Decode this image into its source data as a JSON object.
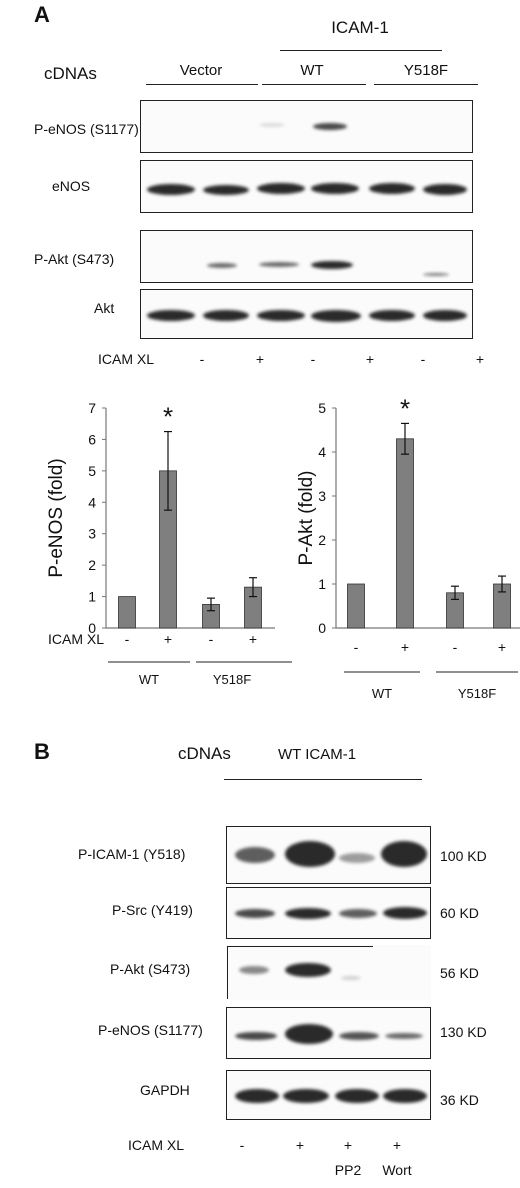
{
  "panel_a": {
    "letter": "A",
    "group_label": "ICAM-1",
    "cdnas_label": "cDNAs",
    "col_vector": "Vector",
    "col_wt": "WT",
    "col_y518f": "Y518F",
    "rows": [
      {
        "label": "P-eNOS (S1177)"
      },
      {
        "label": "eNOS"
      },
      {
        "label": "P-Akt (S473)"
      },
      {
        "label": "Akt"
      }
    ],
    "treatment_label": "ICAM XL",
    "treatment_signs": [
      "-",
      "+",
      "-",
      "+",
      "-",
      "+"
    ]
  },
  "chart_data": [
    {
      "type": "bar",
      "ylabel": "P-eNOS (fold)",
      "ylim": [
        0,
        7
      ],
      "yticks": [
        "0",
        "1",
        "2",
        "3",
        "4",
        "5",
        "6",
        "7"
      ],
      "categories": [
        "-",
        "+",
        "-",
        "+"
      ],
      "values": [
        1.0,
        5.0,
        0.75,
        1.3
      ],
      "errors": [
        0,
        1.25,
        0.2,
        0.3
      ],
      "significance": [
        "",
        "*",
        "",
        ""
      ],
      "group_labels": [
        "WT",
        "Y518F"
      ],
      "row_label": "ICAM XL",
      "bar_color": "#7f7f7f"
    },
    {
      "type": "bar",
      "ylabel": "P-Akt (fold)",
      "ylim": [
        0,
        5
      ],
      "yticks": [
        "0",
        "1",
        "2",
        "3",
        "4",
        "5"
      ],
      "categories": [
        "-",
        "+",
        "-",
        "+"
      ],
      "values": [
        1.0,
        4.3,
        0.8,
        1.0
      ],
      "errors": [
        0,
        0.35,
        0.15,
        0.18
      ],
      "significance": [
        "",
        "*",
        "",
        ""
      ],
      "group_labels": [
        "WT",
        "Y518F"
      ],
      "bar_color": "#7f7f7f"
    }
  ],
  "panel_b": {
    "letter": "B",
    "cdnas_label": "cDNAs",
    "construct_label": "WT  ICAM-1",
    "rows": [
      {
        "label": "P-ICAM-1 (Y518)",
        "size": "100 KD"
      },
      {
        "label": "P-Src (Y419)",
        "size": "60 KD"
      },
      {
        "label": "P-Akt (S473)",
        "size": "56 KD"
      },
      {
        "label": "P-eNOS (S1177)",
        "size": "130 KD"
      },
      {
        "label": "GAPDH",
        "size": "36 KD"
      }
    ],
    "treatment_label": "ICAM XL",
    "treatment_signs": [
      "-",
      "+",
      "+",
      "+"
    ],
    "inhibitors": [
      "PP2",
      "Wort"
    ]
  }
}
